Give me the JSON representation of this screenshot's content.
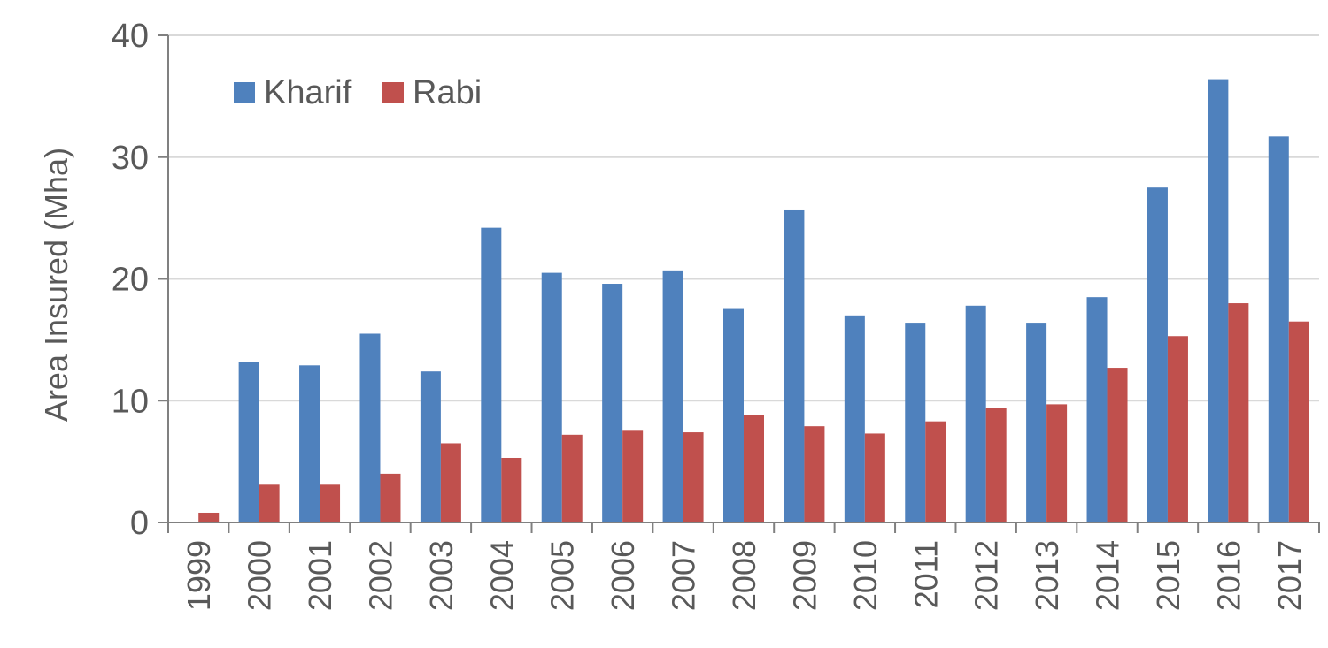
{
  "chart_data": {
    "type": "bar",
    "ylabel": "Area Insured (Mha)",
    "ylim": [
      0,
      40
    ],
    "yticks": [
      0,
      10,
      20,
      30,
      40
    ],
    "grid": true,
    "legend_position": "top-left",
    "categories": [
      "1999",
      "2000",
      "2001",
      "2002",
      "2003",
      "2004",
      "2005",
      "2006",
      "2007",
      "2008",
      "2009",
      "2010",
      "2011",
      "2012",
      "2013",
      "2014",
      "2015",
      "2016",
      "2017"
    ],
    "series": [
      {
        "name": "Kharif",
        "color": "#4F81BD",
        "values": [
          0,
          13.2,
          12.9,
          15.5,
          12.4,
          24.2,
          20.5,
          19.6,
          20.7,
          17.6,
          25.7,
          17.0,
          16.4,
          17.8,
          16.4,
          18.5,
          27.5,
          36.4,
          31.7
        ]
      },
      {
        "name": "Rabi",
        "color": "#C0504D",
        "values": [
          0.8,
          3.1,
          3.1,
          4.0,
          6.5,
          5.3,
          7.2,
          7.6,
          7.4,
          8.8,
          7.9,
          7.3,
          8.3,
          9.4,
          9.7,
          12.7,
          15.3,
          18.0,
          16.5
        ]
      }
    ]
  }
}
